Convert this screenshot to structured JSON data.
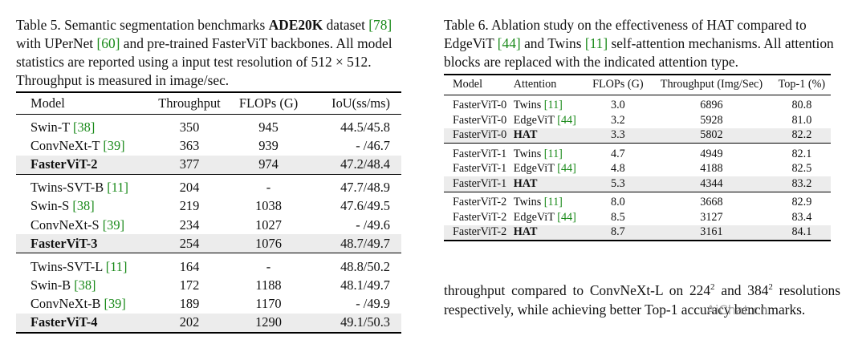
{
  "table5": {
    "caption": {
      "t1": "Table 5. Semantic segmentation benchmarks ",
      "dataset": "ADE20K",
      "t2": " dataset ",
      "ref1": "[78]",
      "t3": " with UPerNet ",
      "ref2": "[60]",
      "t4": " and pre-trained FasterViT backbones. All model statistics are reported using a input test resolution of ",
      "resolution": "512 × 512",
      "t5": ". Throughput is measured in image/sec."
    },
    "headers": [
      "Model",
      "Throughput",
      "FLOPs (G)",
      "IoU(ss/ms)"
    ],
    "groups": [
      [
        {
          "model": "Swin-T",
          "ref": "[38]",
          "throughput": "350",
          "flops": "945",
          "iou": "44.5/45.8",
          "bold": false
        },
        {
          "model": "ConvNeXt-T",
          "ref": "[39]",
          "throughput": "363",
          "flops": "939",
          "iou": "- /46.7",
          "bold": false
        },
        {
          "model": "FasterViT-2",
          "ref": "",
          "throughput": "377",
          "flops": "974",
          "iou": "47.2/48.4",
          "bold": true
        }
      ],
      [
        {
          "model": "Twins-SVT-B",
          "ref": "[11]",
          "throughput": "204",
          "flops": "-",
          "iou": "47.7/48.9",
          "bold": false
        },
        {
          "model": "Swin-S",
          "ref": "[38]",
          "throughput": "219",
          "flops": "1038",
          "iou": "47.6/49.5",
          "bold": false
        },
        {
          "model": "ConvNeXt-S",
          "ref": "[39]",
          "throughput": "234",
          "flops": "1027",
          "iou": "- /49.6",
          "bold": false
        },
        {
          "model": "FasterViT-3",
          "ref": "",
          "throughput": "254",
          "flops": "1076",
          "iou": "48.7/49.7",
          "bold": true
        }
      ],
      [
        {
          "model": "Twins-SVT-L",
          "ref": "[11]",
          "throughput": "164",
          "flops": "-",
          "iou": "48.8/50.2",
          "bold": false
        },
        {
          "model": "Swin-B",
          "ref": "[38]",
          "throughput": "172",
          "flops": "1188",
          "iou": "48.1/49.7",
          "bold": false
        },
        {
          "model": "ConvNeXt-B",
          "ref": "[39]",
          "throughput": "189",
          "flops": "1170",
          "iou": "- /49.9",
          "bold": false
        },
        {
          "model": "FasterViT-4",
          "ref": "",
          "throughput": "202",
          "flops": "1290",
          "iou": "49.1/50.3",
          "bold": true
        }
      ]
    ]
  },
  "table6": {
    "caption": {
      "t1": "Table 6. Ablation study on the effectiveness of HAT compared to EdgeViT ",
      "ref1": "[44]",
      "t2": " and Twins ",
      "ref2": "[11]",
      "t3": " self-attention mechanisms. All attention blocks are replaced with the indicated attention type."
    },
    "headers": [
      "Model",
      "Attention",
      "FLOPs (G)",
      "Throughput (Img/Sec)",
      "Top-1 (%)"
    ],
    "groups": [
      [
        {
          "model": "FasterViT-0",
          "attention": "Twins",
          "ref": "[11]",
          "flops": "3.0",
          "throughput": "6896",
          "top1": "80.8",
          "bold": false
        },
        {
          "model": "FasterViT-0",
          "attention": "EdgeViT",
          "ref": "[44]",
          "flops": "3.2",
          "throughput": "5928",
          "top1": "81.0",
          "bold": false
        },
        {
          "model": "FasterViT-0",
          "attention": "HAT",
          "ref": "",
          "flops": "3.3",
          "throughput": "5802",
          "top1": "82.2",
          "bold": true
        }
      ],
      [
        {
          "model": "FasterViT-1",
          "attention": "Twins",
          "ref": "[11]",
          "flops": "4.7",
          "throughput": "4949",
          "top1": "82.1",
          "bold": false
        },
        {
          "model": "FasterViT-1",
          "attention": "EdgeViT",
          "ref": "[44]",
          "flops": "4.8",
          "throughput": "4188",
          "top1": "82.5",
          "bold": false
        },
        {
          "model": "FasterViT-1",
          "attention": "HAT",
          "ref": "",
          "flops": "5.3",
          "throughput": "4344",
          "top1": "83.2",
          "bold": true
        }
      ],
      [
        {
          "model": "FasterViT-2",
          "attention": "Twins",
          "ref": "[11]",
          "flops": "8.0",
          "throughput": "3668",
          "top1": "82.9",
          "bold": false
        },
        {
          "model": "FasterViT-2",
          "attention": "EdgeViT",
          "ref": "[44]",
          "flops": "8.5",
          "throughput": "3127",
          "top1": "83.4",
          "bold": false
        },
        {
          "model": "FasterViT-2",
          "attention": "HAT",
          "ref": "",
          "flops": "8.7",
          "throughput": "3161",
          "top1": "84.1",
          "bold": true
        }
      ]
    ]
  },
  "body_text": {
    "t1": "throughput compared to ConvNeXt-L on 224",
    "sup1": "2",
    "t2": " and 384",
    "sup2": "2",
    "t3": " resolutions respectively, while achieving better Top-1 accuracy benchmarks."
  },
  "watermark": "AiChat.cn",
  "colors": {
    "ref_link": "#1a8a1a",
    "highlight_row": "#ececec"
  }
}
